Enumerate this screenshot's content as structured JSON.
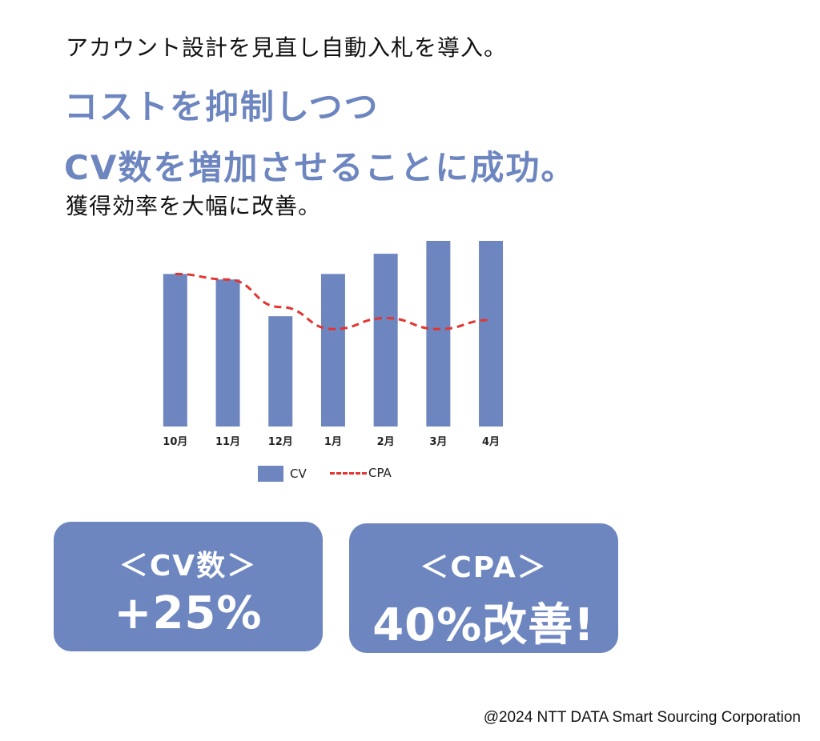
{
  "header": {
    "subheading": "アカウント設計を見直し自動入札を導入。",
    "headline_line1": "コストを抑制しつつ",
    "headline_line2": "CV数を増加させることに成功。",
    "subheading2": "獲得効率を大幅に改善。"
  },
  "chart_data": {
    "type": "bar",
    "categories": [
      "10月",
      "11月",
      "12月",
      "1月",
      "2月",
      "3月",
      "4月"
    ],
    "series": [
      {
        "name": "CV",
        "type": "bar",
        "color": "#6E86C0",
        "values": [
          83,
          80,
          60,
          83,
          94,
          101,
          101
        ]
      },
      {
        "name": "CPA",
        "type": "line",
        "style": "dashed",
        "color": "#E3342F",
        "values": [
          83,
          80,
          65,
          53,
          59,
          53,
          58
        ]
      }
    ],
    "ylim": [
      0,
      101
    ],
    "y_axis_visible": false,
    "grid": false,
    "legend": "bottom"
  },
  "cards": [
    {
      "title": "＜CV数＞",
      "value": "+25%"
    },
    {
      "title": "＜CPA＞",
      "value": "40%改善!"
    }
  ],
  "footer": {
    "copyright": "@2024 NTT DATA Smart Sourcing Corporation"
  }
}
